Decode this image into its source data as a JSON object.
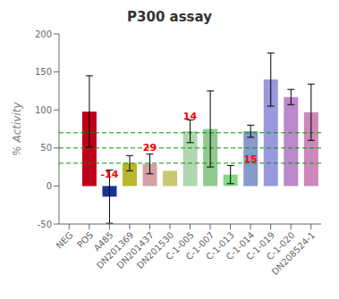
{
  "chart_data": {
    "type": "bar",
    "title": "P300 assay",
    "ylabel": "% Activity",
    "categories": [
      "NEG",
      "POS",
      "A485",
      "DN201369",
      "DN201437",
      "DN201530",
      "C-1-005",
      "C-1-007",
      "C-1-013",
      "C-1-014",
      "C-1-019",
      "C-1-020",
      "DN208524-1"
    ],
    "values": [
      0,
      98,
      -14,
      30,
      29,
      20,
      72,
      75,
      15,
      72,
      140,
      117,
      97
    ],
    "errors": [
      0,
      47,
      35,
      10,
      13,
      0,
      15,
      50,
      12,
      8,
      35,
      10,
      37
    ],
    "colors": [
      "#cccccc",
      "#c0001a",
      "#1a3399",
      "#b8b830",
      "#d4a0a0",
      "#c8c870",
      "#b0d8b0",
      "#90c890",
      "#88d888",
      "#8899cc",
      "#9999dd",
      "#bb88cc",
      "#cc88bb"
    ],
    "hlines": [
      {
        "y": 30,
        "color": "#009900",
        "line_style": "dashed"
      },
      {
        "y": 50,
        "color": "#009900",
        "line_style": "dashed"
      },
      {
        "y": 70,
        "color": "#009900",
        "line_style": "dashed"
      }
    ],
    "annotations": [
      {
        "text": "-14",
        "x": "A485",
        "y": 5,
        "color": "red"
      },
      {
        "text": "29",
        "x": "DN201437",
        "y": 40,
        "color": "red"
      },
      {
        "text": "14",
        "x": "C-1-005",
        "y": 82,
        "color": "red"
      },
      {
        "text": "15",
        "x": "C-1-014",
        "y": 25,
        "color": "red"
      }
    ],
    "ylim": [
      -50,
      200
    ],
    "yticks": [
      -50,
      0,
      50,
      100,
      150,
      200
    ],
    "grid": false
  }
}
